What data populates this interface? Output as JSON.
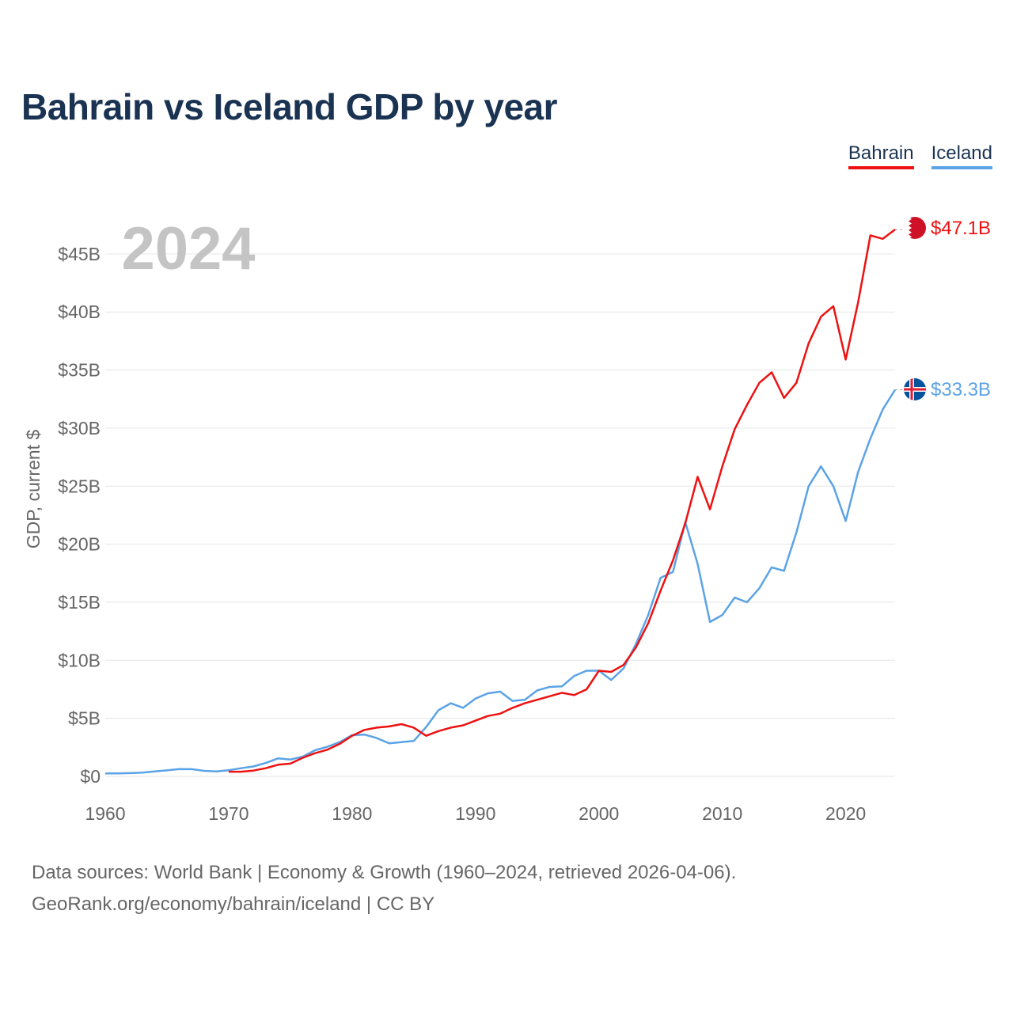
{
  "title": "Bahrain vs Iceland GDP by year",
  "source_line1": "Data sources: World Bank | Economy & Growth (1960–2024, retrieved 2026-04-06).",
  "source_line2": "GeoRank.org/economy/bahrain/iceland | CC BY",
  "legend": [
    {
      "label": "Bahrain",
      "color": "#ee1111"
    },
    {
      "label": "Iceland",
      "color": "#5ba3e6"
    }
  ],
  "chart_data": {
    "type": "line",
    "title": "Bahrain vs Iceland GDP by year",
    "ylabel": "GDP, current $",
    "xlabel": "",
    "year_watermark": "2024",
    "xlim": [
      1960,
      2024
    ],
    "ylim": [
      0,
      50
    ],
    "y_unit": "billion USD",
    "x_ticks": [
      1960,
      1970,
      1980,
      1990,
      2000,
      2010,
      2020
    ],
    "y_ticks": [
      0,
      5,
      10,
      15,
      20,
      25,
      30,
      35,
      40,
      45
    ],
    "y_tick_labels": [
      "$0",
      "$5B",
      "$10B",
      "$15B",
      "$20B",
      "$25B",
      "$30B",
      "$35B",
      "$40B",
      "$45B"
    ],
    "grid": true,
    "series": [
      {
        "name": "Bahrain",
        "color": "#ee1111",
        "end_label": "$47.1B",
        "flag": "bahrain-flag",
        "x": [
          1970,
          1971,
          1972,
          1973,
          1974,
          1975,
          1976,
          1977,
          1978,
          1979,
          1980,
          1981,
          1982,
          1983,
          1984,
          1985,
          1986,
          1987,
          1988,
          1989,
          1990,
          1991,
          1992,
          1993,
          1994,
          1995,
          1996,
          1997,
          1998,
          1999,
          2000,
          2001,
          2002,
          2003,
          2004,
          2005,
          2006,
          2007,
          2008,
          2009,
          2010,
          2011,
          2012,
          2013,
          2014,
          2015,
          2016,
          2017,
          2018,
          2019,
          2020,
          2021,
          2022,
          2023,
          2024
        ],
        "values": [
          0.4,
          0.4,
          0.5,
          0.7,
          1.0,
          1.1,
          1.6,
          2.0,
          2.3,
          2.8,
          3.5,
          4.0,
          4.2,
          4.3,
          4.5,
          4.2,
          3.5,
          3.9,
          4.2,
          4.4,
          4.8,
          5.2,
          5.4,
          5.9,
          6.3,
          6.6,
          6.9,
          7.2,
          7.0,
          7.5,
          9.1,
          9.0,
          9.6,
          11.1,
          13.2,
          16.0,
          18.6,
          21.8,
          25.8,
          23.0,
          26.7,
          29.9,
          32.0,
          33.9,
          34.8,
          32.6,
          33.9,
          37.3,
          39.6,
          40.5,
          35.9,
          40.8,
          46.6,
          46.3,
          47.1
        ]
      },
      {
        "name": "Iceland",
        "color": "#5ba3e6",
        "end_label": "$33.3B",
        "flag": "iceland-flag",
        "x": [
          1960,
          1961,
          1962,
          1963,
          1964,
          1965,
          1966,
          1967,
          1968,
          1969,
          1970,
          1971,
          1972,
          1973,
          1974,
          1975,
          1976,
          1977,
          1978,
          1979,
          1980,
          1981,
          1982,
          1983,
          1984,
          1985,
          1986,
          1987,
          1988,
          1989,
          1990,
          1991,
          1992,
          1993,
          1994,
          1995,
          1996,
          1997,
          1998,
          1999,
          2000,
          2001,
          2002,
          2003,
          2004,
          2005,
          2006,
          2007,
          2008,
          2009,
          2010,
          2011,
          2012,
          2013,
          2014,
          2015,
          2016,
          2017,
          2018,
          2019,
          2020,
          2021,
          2022,
          2023,
          2024
        ],
        "values": [
          0.25,
          0.25,
          0.28,
          0.32,
          0.42,
          0.52,
          0.63,
          0.62,
          0.48,
          0.42,
          0.53,
          0.7,
          0.85,
          1.15,
          1.55,
          1.45,
          1.7,
          2.25,
          2.55,
          2.95,
          3.55,
          3.6,
          3.3,
          2.85,
          2.95,
          3.05,
          4.25,
          5.7,
          6.3,
          5.9,
          6.7,
          7.15,
          7.3,
          6.5,
          6.6,
          7.4,
          7.7,
          7.75,
          8.65,
          9.1,
          9.1,
          8.3,
          9.3,
          11.4,
          13.9,
          17.1,
          17.6,
          21.9,
          18.3,
          13.3,
          13.9,
          15.4,
          15.0,
          16.2,
          18.0,
          17.7,
          21.0,
          25.0,
          26.7,
          25.0,
          22.0,
          26.2,
          29.1,
          31.6,
          33.3
        ]
      }
    ]
  }
}
